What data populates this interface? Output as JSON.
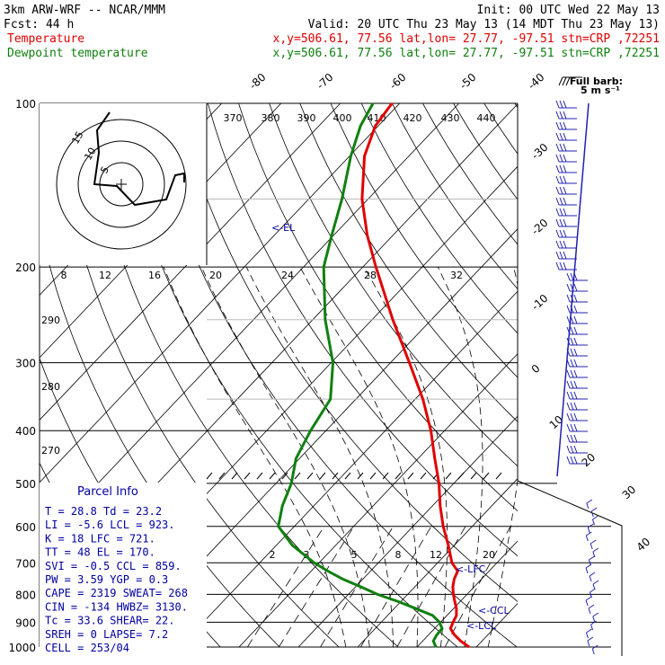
{
  "header": {
    "line1_left": "3km ARW-WRF -- NCAR/MMM",
    "line1_right": "Init: 00 UTC Wed 22 May 13",
    "line2_left": "Fcst:    44 h",
    "line2_right": "Valid: 20 UTC Thu 23 May 13 (14 MDT Thu 23 May 13)",
    "line3_label": "Temperature",
    "line3_info": "x,y=506.61, 77.56   lat,lon= 27.77, -97.51   stn=CRP ,72251",
    "line4_label": "Dewpoint temperature",
    "line4_info": "x,y=506.61, 77.56   lat,lon= 27.77, -97.51   stn=CRP ,72251"
  },
  "colors": {
    "temperature": "#e00000",
    "dewpoint": "#108010",
    "info_text": "#0000a0",
    "wind_barbs": "#2020b0",
    "grid": "#000000"
  },
  "barb_legend": {
    "line1": "Full barb:",
    "line2": "5 m s⁻¹"
  },
  "hodograph": {
    "units": "kts",
    "rings": [
      "5",
      "10",
      "15"
    ]
  },
  "labels": {
    "el": "<-EL",
    "lfc": "<-LFC",
    "ccl": "<-CCL",
    "lcl": "<-LCL"
  },
  "parcel_info": {
    "title": "Parcel Info",
    "rows": [
      "T  =    28.8  Td =  23.2",
      "LI =    -5.6  LCL =  923.",
      "K  =      18  LFC =  721.",
      "TT =      48  EL  =  170.",
      "SVI =   -0.5  CCL =  859.",
      "PW =    3.59  YGP =   0.3",
      "CAPE =  2319  SWEAT=  268",
      "CIN =   -134  HWBZ= 3130.",
      "Tc =    33.6  SHEAR=   22.",
      "SREH =     0  LAPSE=   7.2",
      "CELL = 253/04"
    ]
  },
  "chart_data": {
    "type": "line",
    "chart_kind": "Skew-T log-P diagram",
    "y_axis": {
      "label": "",
      "scale": "log",
      "unit": "hPa",
      "range": [
        1000,
        100
      ],
      "ticks": [
        100,
        200,
        300,
        400,
        500,
        600,
        700,
        800,
        900,
        1000
      ]
    },
    "x_axis_temperature_labels": [
      "-80",
      "-70",
      "-60",
      "-50",
      "-40",
      "-30",
      "-20",
      "-10",
      "0",
      "10",
      "20",
      "30",
      "40"
    ],
    "potential_temperature_labels": [
      "370",
      "380",
      "390",
      "400",
      "410",
      "420",
      "430",
      "440"
    ],
    "theta_e_labels": [
      "8",
      "12",
      "16",
      "20",
      "24",
      "28",
      "32"
    ],
    "mixing_ratio_labels": [
      "2",
      "3",
      "5",
      "8",
      "12",
      "20"
    ],
    "dry_adiabat_labels": [
      "290",
      "280",
      "270"
    ],
    "series": [
      {
        "name": "Temperature",
        "pressure": [
          1000,
          975,
          950,
          925,
          900,
          875,
          850,
          825,
          800,
          775,
          750,
          725,
          700,
          650,
          600,
          550,
          500,
          450,
          400,
          350,
          300,
          250,
          200,
          175,
          150,
          125,
          110,
          100
        ],
        "values": [
          28.8,
          26.4,
          24.4,
          22.7,
          22.1,
          21.6,
          20.5,
          19.1,
          17.7,
          16.4,
          15.4,
          14.7,
          12.4,
          9.0,
          5.1,
          1.3,
          -2.5,
          -7.2,
          -12.3,
          -18.7,
          -26.8,
          -36.5,
          -47.8,
          -54.3,
          -61.0,
          -67.5,
          -70.5,
          -71.3
        ]
      },
      {
        "name": "Dewpoint temperature",
        "pressure": [
          1000,
          975,
          950,
          925,
          900,
          875,
          850,
          825,
          800,
          775,
          750,
          725,
          700,
          650,
          600,
          550,
          500,
          450,
          400,
          350,
          300,
          250,
          200,
          175,
          150,
          125,
          110,
          100
        ],
        "values": [
          23.2,
          21.8,
          21.4,
          21.3,
          19.8,
          17.6,
          13.7,
          9.6,
          4.9,
          0.9,
          -3.4,
          -7.2,
          -10.8,
          -17.3,
          -22.7,
          -25.3,
          -27.4,
          -30.6,
          -32.6,
          -34.3,
          -39.7,
          -47.9,
          -56.6,
          -60.3,
          -64.4,
          -69.8,
          -73.0,
          -74.5
        ]
      }
    ],
    "levels_marked": {
      "EL": 170,
      "LFC": 721,
      "CCL": 859,
      "LCL": 923
    },
    "grid": true
  }
}
